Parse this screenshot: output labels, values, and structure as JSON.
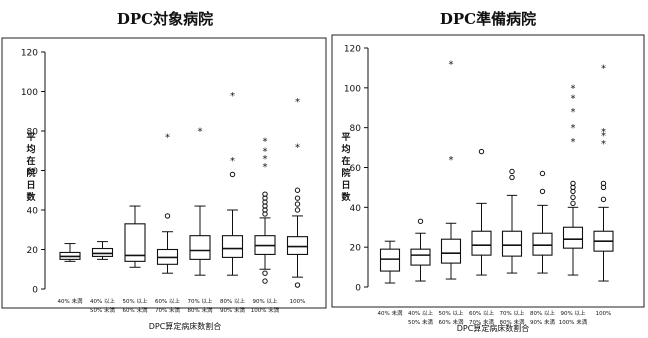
{
  "chart_data": [
    {
      "type": "boxplot",
      "title": "DPC対象病院",
      "xlabel": "DPC算定病床数割合",
      "ylabel": "平均在院日数",
      "ylim": [
        0,
        120
      ],
      "yticks": [
        0,
        20,
        40,
        60,
        80,
        100,
        120
      ],
      "categories": [
        [
          "40% 未満"
        ],
        [
          "40% 以上",
          "50% 未満"
        ],
        [
          "50% 以上",
          "60% 未満"
        ],
        [
          "60% 以上",
          "70% 未満"
        ],
        [
          "70% 以上",
          "80% 未満"
        ],
        [
          "80% 以上",
          "90% 未満"
        ],
        [
          "90% 以上",
          "100% 未満"
        ],
        [
          "100%"
        ]
      ],
      "boxes": [
        {
          "whislo": 14,
          "q1": 15,
          "med": 16.5,
          "q3": 18.5,
          "whishi": 23,
          "outliers": []
        },
        {
          "whislo": 15,
          "q1": 16.5,
          "med": 18,
          "q3": 20.5,
          "whishi": 24,
          "outliers": []
        },
        {
          "whislo": 11,
          "q1": 14,
          "med": 17,
          "q3": 33,
          "whishi": 42,
          "outliers": []
        },
        {
          "whislo": 8,
          "q1": 12.5,
          "med": 16,
          "q3": 20,
          "whishi": 29,
          "outliers": [
            {
              "y": 37,
              "m": "o"
            },
            {
              "y": 77,
              "m": "*"
            }
          ]
        },
        {
          "whislo": 7,
          "q1": 15,
          "med": 19.5,
          "q3": 27,
          "whishi": 42,
          "outliers": [
            {
              "y": 80,
              "m": "*"
            }
          ]
        },
        {
          "whislo": 7,
          "q1": 16,
          "med": 20.5,
          "q3": 27,
          "whishi": 40,
          "outliers": [
            {
              "y": 58,
              "m": "o"
            },
            {
              "y": 65,
              "m": "*"
            },
            {
              "y": 98,
              "m": "*"
            }
          ]
        },
        {
          "whislo": 10,
          "q1": 17.5,
          "med": 22,
          "q3": 27,
          "whishi": 36,
          "outliers": [
            {
              "y": 4,
              "m": "o"
            },
            {
              "y": 8,
              "m": "o"
            },
            {
              "y": 38,
              "m": "o"
            },
            {
              "y": 40,
              "m": "o"
            },
            {
              "y": 42,
              "m": "o"
            },
            {
              "y": 44,
              "m": "o"
            },
            {
              "y": 46,
              "m": "o"
            },
            {
              "y": 48,
              "m": "o"
            },
            {
              "y": 62,
              "m": "*"
            },
            {
              "y": 66,
              "m": "*"
            },
            {
              "y": 70,
              "m": "*"
            },
            {
              "y": 75,
              "m": "*"
            }
          ]
        },
        {
          "whislo": 6,
          "q1": 17.5,
          "med": 21.5,
          "q3": 26.5,
          "whishi": 37,
          "outliers": [
            {
              "y": 2,
              "m": "o"
            },
            {
              "y": 40,
              "m": "o"
            },
            {
              "y": 43,
              "m": "o"
            },
            {
              "y": 46,
              "m": "o"
            },
            {
              "y": 50,
              "m": "o"
            },
            {
              "y": 72,
              "m": "*"
            },
            {
              "y": 95,
              "m": "*"
            }
          ]
        }
      ]
    },
    {
      "type": "boxplot",
      "title": "DPC準備病院",
      "xlabel": "DPC算定病床数割合",
      "ylabel": "平均在院日数",
      "ylim": [
        0,
        120
      ],
      "yticks": [
        0,
        20,
        40,
        60,
        80,
        100,
        120
      ],
      "categories": [
        [
          "40% 未満"
        ],
        [
          "40% 以上",
          "50% 未満"
        ],
        [
          "50% 以上",
          "60% 未満"
        ],
        [
          "60% 以上",
          "70% 未満"
        ],
        [
          "70% 以上",
          "80% 未満"
        ],
        [
          "80% 以上",
          "90% 未満"
        ],
        [
          "90% 以上",
          "100% 未満"
        ],
        [
          "100%"
        ]
      ],
      "boxes": [
        {
          "whislo": 2,
          "q1": 8,
          "med": 14,
          "q3": 19,
          "whishi": 23,
          "outliers": []
        },
        {
          "whislo": 3,
          "q1": 11,
          "med": 16,
          "q3": 19,
          "whishi": 27,
          "outliers": [
            {
              "y": 33,
              "m": "o"
            }
          ]
        },
        {
          "whislo": 4,
          "q1": 12,
          "med": 17,
          "q3": 24,
          "whishi": 32,
          "outliers": [
            {
              "y": 64,
              "m": "*"
            },
            {
              "y": 112,
              "m": "*"
            }
          ]
        },
        {
          "whislo": 6,
          "q1": 16,
          "med": 21,
          "q3": 28,
          "whishi": 42,
          "outliers": [
            {
              "y": 68,
              "m": "o"
            }
          ]
        },
        {
          "whislo": 7,
          "q1": 15.5,
          "med": 21,
          "q3": 28,
          "whishi": 46,
          "outliers": [
            {
              "y": 55,
              "m": "o"
            },
            {
              "y": 58,
              "m": "o"
            }
          ]
        },
        {
          "whislo": 7,
          "q1": 16,
          "med": 21,
          "q3": 27,
          "whishi": 41,
          "outliers": [
            {
              "y": 48,
              "m": "o"
            },
            {
              "y": 57,
              "m": "o"
            }
          ]
        },
        {
          "whislo": 6,
          "q1": 19.5,
          "med": 24,
          "q3": 30,
          "whishi": 40,
          "outliers": [
            {
              "y": 42,
              "m": "o"
            },
            {
              "y": 45,
              "m": "o"
            },
            {
              "y": 48,
              "m": "o"
            },
            {
              "y": 50,
              "m": "o"
            },
            {
              "y": 52,
              "m": "o"
            },
            {
              "y": 73,
              "m": "*"
            },
            {
              "y": 80,
              "m": "*"
            },
            {
              "y": 88,
              "m": "*"
            },
            {
              "y": 95,
              "m": "*"
            },
            {
              "y": 100,
              "m": "*"
            }
          ]
        },
        {
          "whislo": 3,
          "q1": 18,
          "med": 23,
          "q3": 28,
          "whishi": 40,
          "outliers": [
            {
              "y": 44,
              "m": "o"
            },
            {
              "y": 50,
              "m": "o"
            },
            {
              "y": 52,
              "m": "o"
            },
            {
              "y": 72,
              "m": "*"
            },
            {
              "y": 76,
              "m": "*"
            },
            {
              "y": 78,
              "m": "*"
            },
            {
              "y": 110,
              "m": "*"
            }
          ]
        }
      ]
    }
  ]
}
